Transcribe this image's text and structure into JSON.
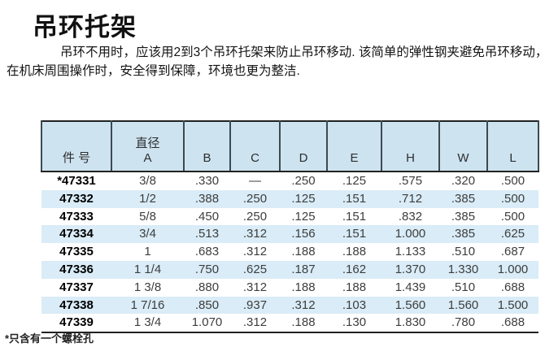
{
  "page": {
    "title": "吊环托架",
    "intro": "吊环不用时，应该用2到3个吊环托架来防止吊环移动. 该简单的弹性钢夹避免吊环移动，在机床周围操作时，安全得到保障，环境也更为整洁.",
    "footnote": "*只含有一个螺栓孔"
  },
  "table": {
    "headers": [
      {
        "label": "件 号"
      },
      {
        "label": "直径",
        "label2": "A"
      },
      {
        "label": "B"
      },
      {
        "label": "C"
      },
      {
        "label": "D"
      },
      {
        "label": "E"
      },
      {
        "label": "H"
      },
      {
        "label": "W"
      },
      {
        "label": "L"
      }
    ],
    "rows": [
      {
        "part": "*47331",
        "cells": [
          "3/8",
          ".330",
          "—",
          ".250",
          ".125",
          ".575",
          ".320",
          ".500"
        ]
      },
      {
        "part": "47332",
        "cells": [
          "1/2",
          ".388",
          ".250",
          ".125",
          ".151",
          ".712",
          ".385",
          ".500"
        ]
      },
      {
        "part": "47333",
        "cells": [
          "5/8",
          ".450",
          ".250",
          ".125",
          ".151",
          ".832",
          ".385",
          ".500"
        ]
      },
      {
        "part": "47334",
        "cells": [
          "3/4",
          ".513",
          ".312",
          ".156",
          ".151",
          "1.000",
          ".385",
          ".625"
        ]
      },
      {
        "part": "47335",
        "cells": [
          "1",
          ".683",
          ".312",
          ".188",
          ".188",
          "1.133",
          ".510",
          ".687"
        ]
      },
      {
        "part": "47336",
        "cells": [
          "1 1/4",
          ".750",
          ".625",
          ".187",
          ".162",
          "1.370",
          "1.330",
          "1.000"
        ]
      },
      {
        "part": "47337",
        "cells": [
          "1 3/8",
          ".880",
          ".312",
          ".188",
          ".188",
          "1.439",
          ".510",
          ".688"
        ]
      },
      {
        "part": "47338",
        "cells": [
          "1 7/16",
          ".850",
          ".937",
          ".312",
          ".103",
          "1.560",
          "1.560",
          "1.500"
        ]
      },
      {
        "part": "47339",
        "cells": [
          "1 3/4",
          "1.070",
          ".312",
          ".188",
          ".130",
          "1.830",
          ".780",
          ".688"
        ]
      }
    ]
  },
  "colors": {
    "header_bg": "#cde3f0",
    "stripe_bg": "#d9ecf7",
    "border_dark": "#222222",
    "header_divider": "#3c4a52"
  }
}
